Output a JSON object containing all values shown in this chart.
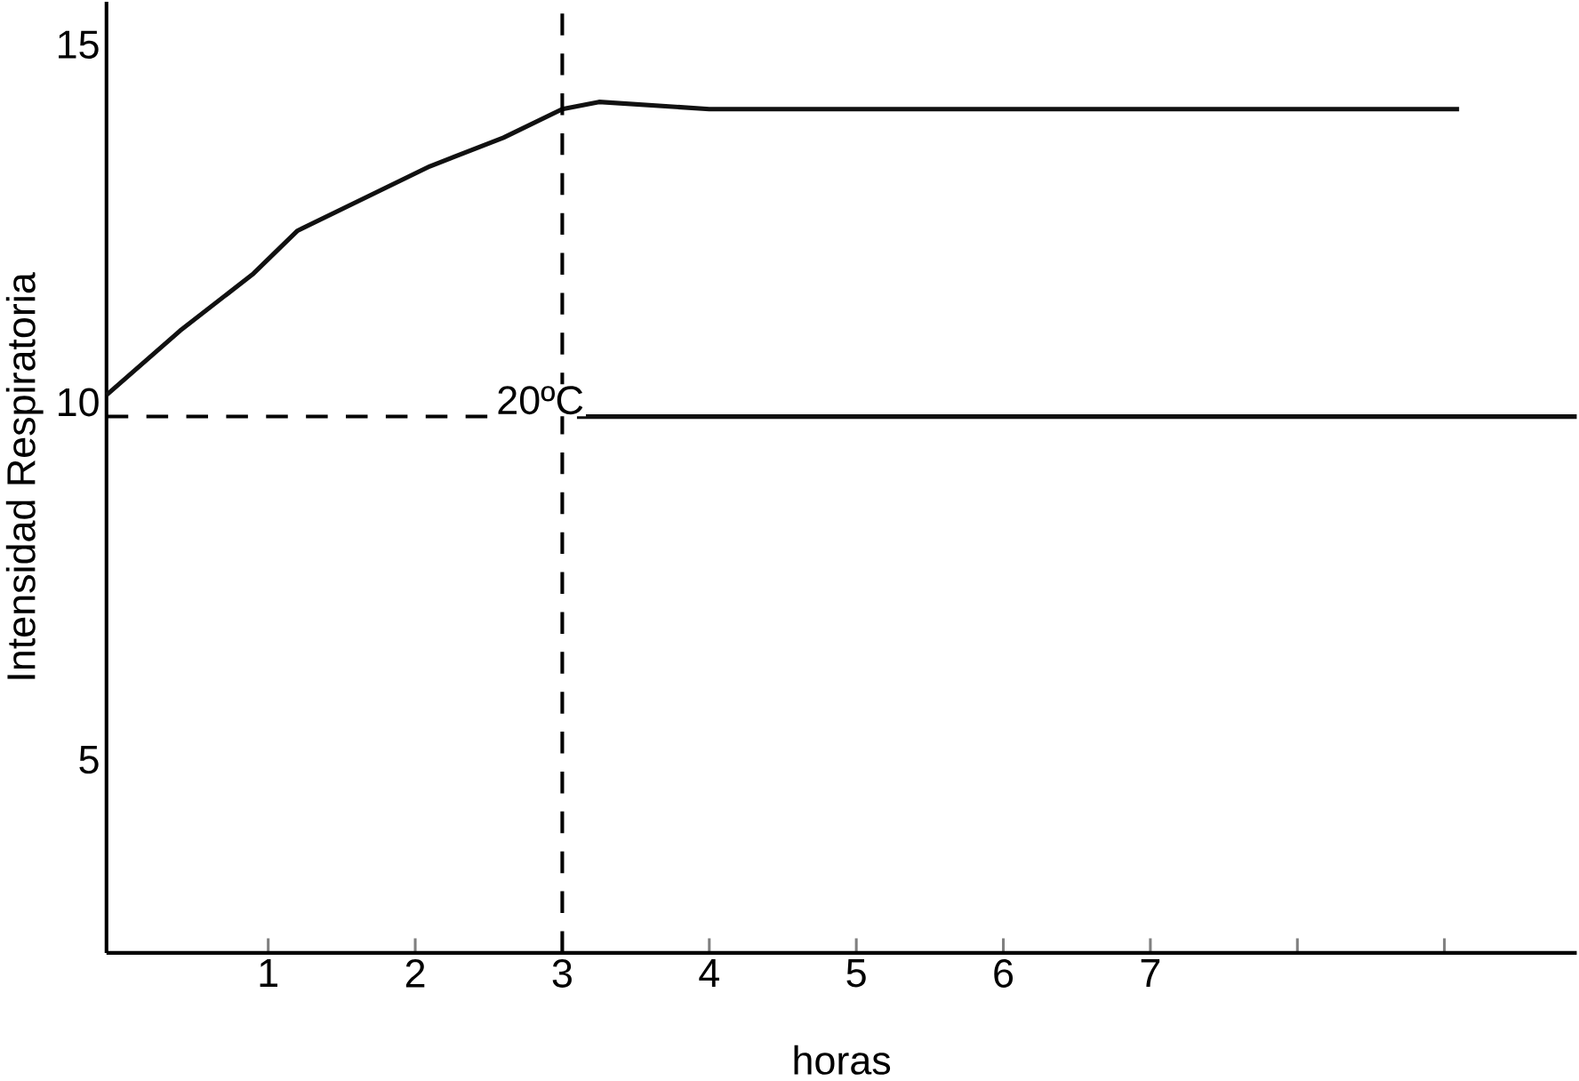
{
  "chart_data": {
    "type": "line",
    "xlabel": "horas",
    "ylabel": "Intensidad Respiratoria",
    "xlim": [
      -0.1,
      9.9
    ],
    "ylim": [
      2.3,
      15.6
    ],
    "xticks": [
      1,
      2,
      3,
      4,
      5,
      6,
      7,
      {
        "value": 8,
        "label": null
      },
      {
        "value": 9,
        "label": null
      }
    ],
    "yticks": [
      5,
      10,
      15
    ],
    "series": [
      {
        "color": "#111111",
        "x": [
          -0.1,
          0.4,
          0.9,
          1.2,
          1.6,
          2.1,
          2.6,
          3.0,
          3.25,
          4.0,
          5.0,
          6.0,
          7.0,
          8.0,
          9.1
        ],
        "values": [
          10.1,
          11.0,
          11.8,
          12.4,
          12.8,
          13.3,
          13.7,
          14.1,
          14.2,
          14.1,
          14.1,
          14.1,
          14.1,
          14.1,
          14.1
        ]
      },
      {
        "color": "#111111",
        "x": [
          3.1,
          5.0,
          7.0,
          9.9
        ],
        "values": [
          9.8,
          9.8,
          9.8,
          9.8
        ]
      }
    ],
    "ref_lines": [
      {
        "axis": "x",
        "value": 3,
        "line_style": "dashed"
      },
      {
        "axis": "y",
        "value": 9.8,
        "label": "20ºC",
        "line_style": "dashed"
      }
    ],
    "grid": false,
    "marker": "none",
    "line_style": "solid"
  }
}
